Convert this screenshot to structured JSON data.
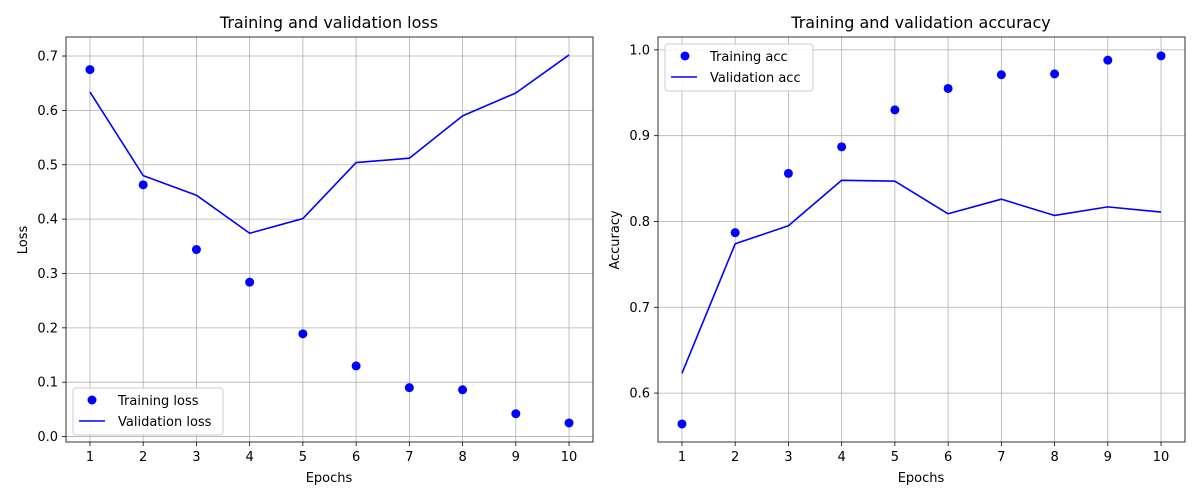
{
  "colors": {
    "series": "#0000ff",
    "grid": "#b0b0b0",
    "axes": "#000000"
  },
  "chart_data": [
    {
      "type": "line",
      "title": "Training and validation loss",
      "xlabel": "Epochs",
      "ylabel": "Loss",
      "x": [
        1,
        2,
        3,
        4,
        5,
        6,
        7,
        8,
        9,
        10
      ],
      "xticks": [
        1,
        2,
        3,
        4,
        5,
        6,
        7,
        8,
        9,
        10
      ],
      "xlim": [
        0.55,
        10.45
      ],
      "yticks": [
        0.0,
        0.1,
        0.2,
        0.3,
        0.4,
        0.5,
        0.6,
        0.7
      ],
      "ylim": [
        -0.01,
        0.735
      ],
      "grid": true,
      "legend_position": "lower-left",
      "series": [
        {
          "name": "Training loss",
          "style": "points",
          "values": [
            0.675,
            0.463,
            0.344,
            0.284,
            0.189,
            0.13,
            0.09,
            0.086,
            0.042,
            0.025
          ]
        },
        {
          "name": "Validation loss",
          "style": "line",
          "values": [
            0.634,
            0.48,
            0.444,
            0.374,
            0.401,
            0.504,
            0.512,
            0.59,
            0.632,
            0.702
          ]
        }
      ]
    },
    {
      "type": "line",
      "title": "Training and validation accuracy",
      "xlabel": "Epochs",
      "ylabel": "Accuracy",
      "x": [
        1,
        2,
        3,
        4,
        5,
        6,
        7,
        8,
        9,
        10
      ],
      "xticks": [
        1,
        2,
        3,
        4,
        5,
        6,
        7,
        8,
        9,
        10
      ],
      "xlim": [
        0.55,
        10.45
      ],
      "yticks": [
        0.6,
        0.7,
        0.8,
        0.9,
        1.0
      ],
      "ylim": [
        0.543,
        1.015
      ],
      "grid": true,
      "legend_position": "upper-left",
      "series": [
        {
          "name": "Training acc",
          "style": "points",
          "values": [
            0.564,
            0.787,
            0.856,
            0.887,
            0.93,
            0.955,
            0.971,
            0.972,
            0.988,
            0.993
          ]
        },
        {
          "name": "Validation acc",
          "style": "line",
          "values": [
            0.623,
            0.774,
            0.795,
            0.848,
            0.847,
            0.809,
            0.826,
            0.807,
            0.817,
            0.811
          ]
        }
      ]
    }
  ]
}
